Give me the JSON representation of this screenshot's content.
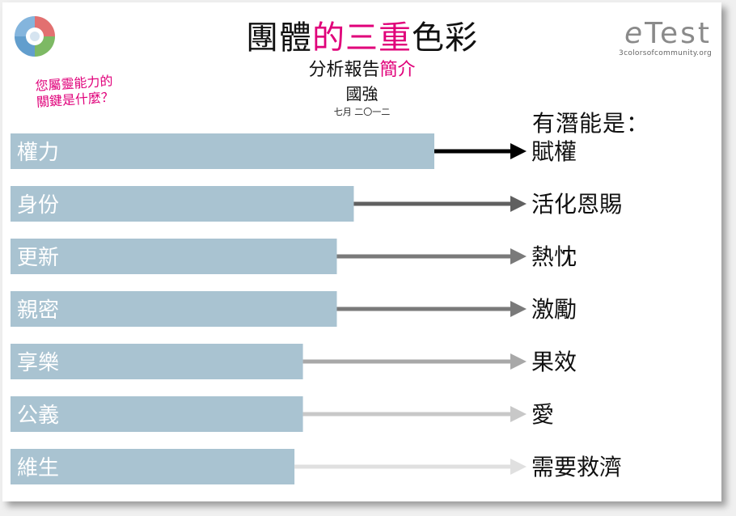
{
  "header": {
    "title_part1": "團體",
    "title_part2": "的三重",
    "title_part3": "色彩",
    "subtitle_part1": "分析報告",
    "subtitle_part2": "簡介",
    "name": "國強",
    "date": "七月 二〇一二"
  },
  "brand": {
    "logo_e": "e",
    "logo_rest": "Test",
    "website": "3colorsofcommunity.org"
  },
  "question": {
    "line1": "您屬靈能力的",
    "line2": "關鍵是什麼？"
  },
  "potential_heading": "有潛能是：",
  "colors": {
    "highlight": "#e0007a",
    "bar": "#a9c3d1",
    "arrow_scale": [
      "#000000",
      "#606060",
      "#7a7a7a",
      "#7a7a7a",
      "#a8a8a8",
      "#c8c8c8",
      "#e0e0e0"
    ]
  },
  "chart_data": {
    "type": "bar",
    "orientation": "horizontal",
    "categories": [
      "權力",
      "身份",
      "更新",
      "親密",
      "享樂",
      "公義",
      "維生"
    ],
    "values": [
      100,
      81,
      77,
      77,
      69,
      69,
      67
    ],
    "results": [
      "賦權",
      "活化恩賜",
      "熱忱",
      "激勵",
      "果效",
      "愛",
      "需要救濟"
    ],
    "xlim": [
      0,
      100
    ]
  }
}
